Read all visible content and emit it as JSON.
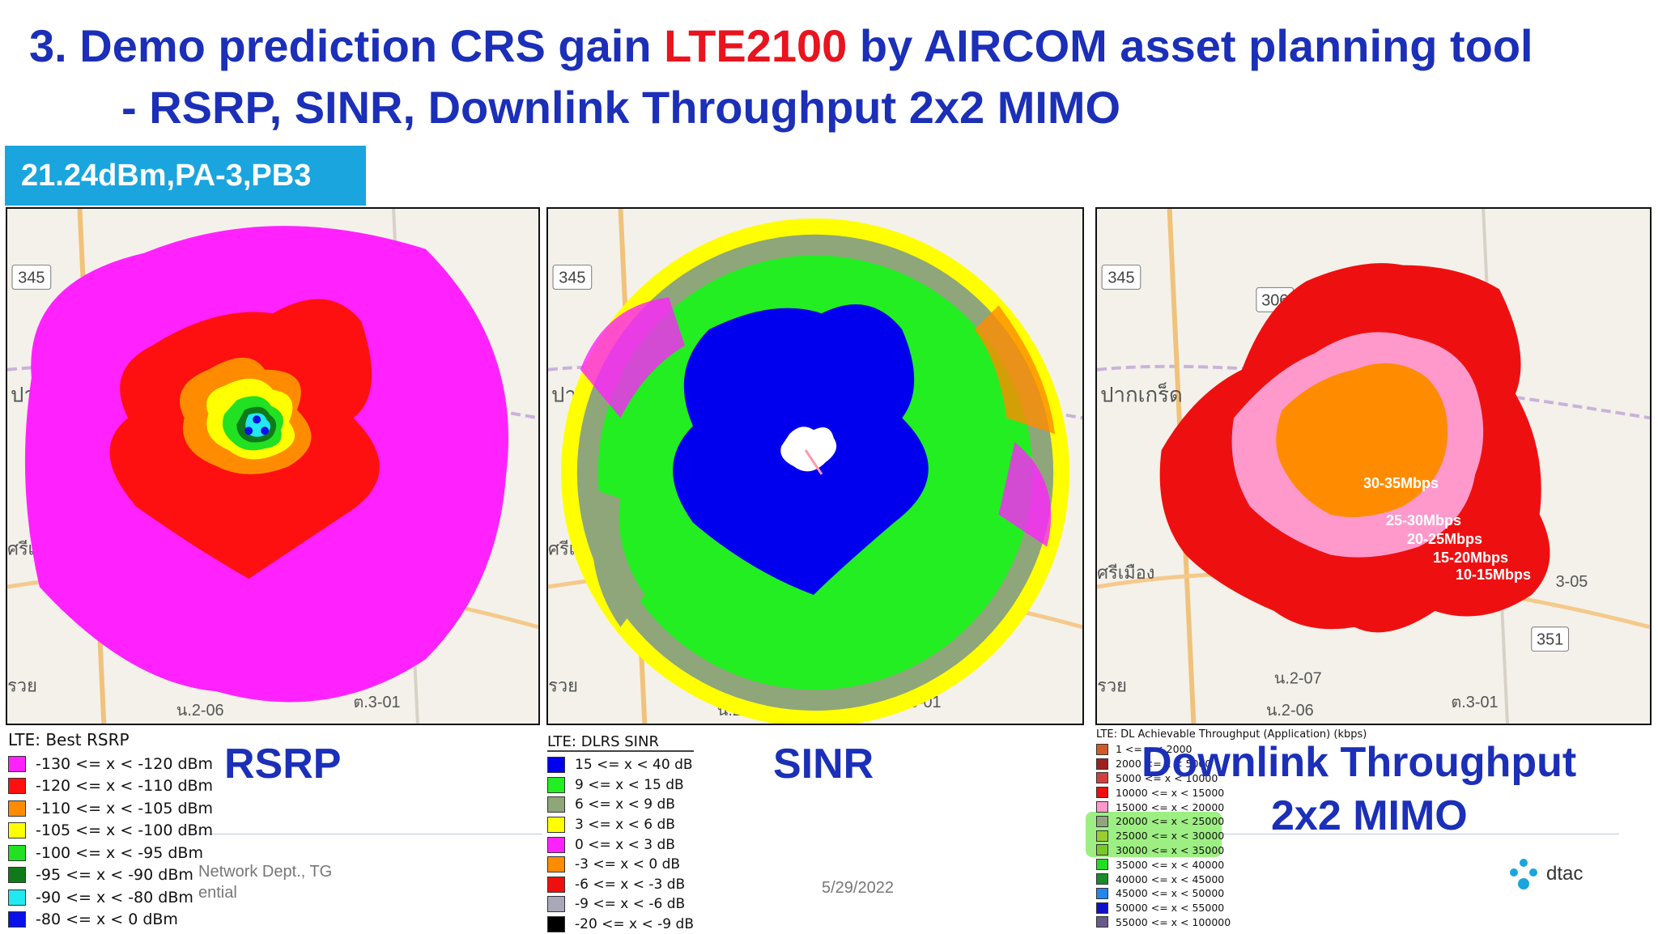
{
  "title": {
    "prefix": "3. Demo prediction CRS gain ",
    "highlight": "LTE2100",
    "suffix": " by AIRCOM asset planning tool"
  },
  "subtitle": "- RSRP, SINR, Downlink Throughput 2x2 MIMO",
  "badge": "21.24dBm,PA-3,PB3",
  "rsrp": {
    "heading": "RSRP",
    "legend_title": "LTE: Best RSRP",
    "items": [
      {
        "label": "-130 <= x < -120 dBm",
        "color": "#ff22ff"
      },
      {
        "label": "-120 <= x < -110 dBm",
        "color": "#ff1010"
      },
      {
        "label": "-110 <= x < -105 dBm",
        "color": "#ff8c00"
      },
      {
        "label": "-105 <= x < -100 dBm",
        "color": "#ffff00"
      },
      {
        "label": "-100 <= x < -95 dBm",
        "color": "#22e022"
      },
      {
        "label": "-95 <= x < -90 dBm",
        "color": "#0f7a1a"
      },
      {
        "label": "-90 <= x < -80 dBm",
        "color": "#22e8f0"
      },
      {
        "label": "-80 <= x < 0 dBm",
        "color": "#0a10e8"
      }
    ]
  },
  "sinr": {
    "heading": "SINR",
    "legend_title": "LTE: DLRS SINR",
    "items": [
      {
        "label": "15 <= x < 40 dB",
        "color": "#0000ee"
      },
      {
        "label": "9 <= x < 15 dB",
        "color": "#22ee22"
      },
      {
        "label": "6 <= x < 9 dB",
        "color": "#8fa67a"
      },
      {
        "label": "3 <= x < 6 dB",
        "color": "#ffff00"
      },
      {
        "label": "0 <= x < 3 dB",
        "color": "#ff22ff"
      },
      {
        "label": "-3 <= x < 0 dB",
        "color": "#ff8c00"
      },
      {
        "label": "-6 <= x < -3 dB",
        "color": "#ee1010"
      },
      {
        "label": "-9 <= x < -6 dB",
        "color": "#a8a8b8"
      },
      {
        "label": "-20 <= x < -9 dB",
        "color": "#000000"
      }
    ]
  },
  "throughput": {
    "heading_line1": "Downlink Throughput",
    "heading_line2": "2x2 MIMO",
    "legend_title": "LTE: DL Achievable Throughput (Application) (kbps)",
    "items": [
      {
        "label": "1 <= x < 2000",
        "color": "#d05a2a"
      },
      {
        "label": "2000 <= x < 5000",
        "color": "#a02020"
      },
      {
        "label": "5000 <= x < 10000",
        "color": "#d04040"
      },
      {
        "label": "10000 <= x < 15000",
        "color": "#ee1010"
      },
      {
        "label": "15000 <= x < 20000",
        "color": "#ff99cc"
      },
      {
        "label": "20000 <= x < 25000",
        "color": "#8fa67a"
      },
      {
        "label": "25000 <= x < 30000",
        "color": "#9acd32"
      },
      {
        "label": "30000 <= x < 35000",
        "color": "#78c828"
      },
      {
        "label": "35000 <= x < 40000",
        "color": "#22dd22"
      },
      {
        "label": "40000 <= x < 45000",
        "color": "#1a8a2a"
      },
      {
        "label": "45000 <= x < 50000",
        "color": "#2288ee"
      },
      {
        "label": "50000 <= x < 55000",
        "color": "#1010cc"
      },
      {
        "label": "55000 <= x < 100000",
        "color": "#6a5a8a"
      }
    ],
    "labels": [
      "30-35Mbps",
      "25-30Mbps",
      "20-25Mbps",
      "15-20Mbps",
      "10-15Mbps"
    ]
  },
  "map_labels": {
    "road_345": "345",
    "road_306": "306",
    "road_351": "351",
    "road_a": "น.2-06",
    "road_b": "ต.3-01",
    "road_c": "น.2-07",
    "road_d": "3-05",
    "place_pakkret": "ปากเกร็ด",
    "place_pak_short": "ปาก",
    "place_pak_short2": "ปา",
    "place_srimuang": "ศรีเมือง",
    "place_sri_short": "ศรีเมื",
    "place_sri_short2": "ศรีเม",
    "place_ray": "รวย"
  },
  "footer": {
    "dept_line1": "Network Dept., TG",
    "dept_line2": "ential",
    "date": "5/29/2022",
    "logo": "dtac"
  }
}
